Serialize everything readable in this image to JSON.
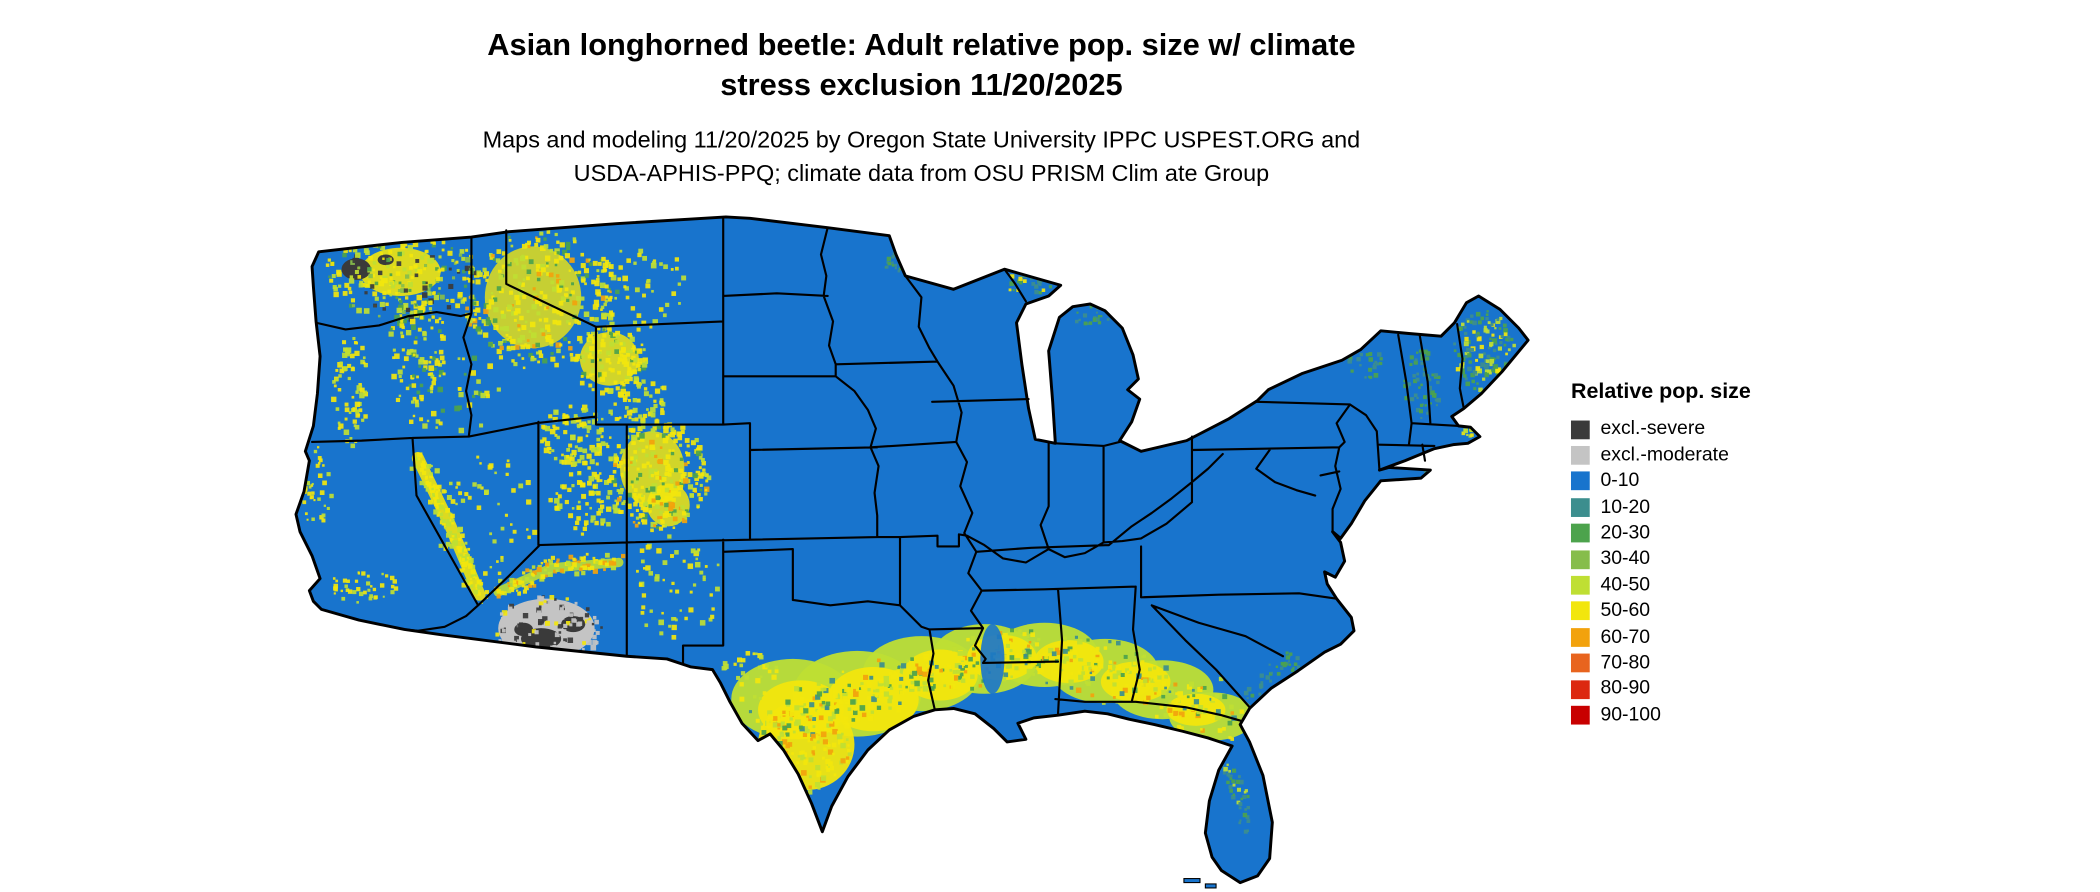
{
  "title": {
    "line1": "Asian longhorned beetle: Adult relative pop. size w/ climate",
    "line2": "stress exclusion 11/20/2025"
  },
  "subtitle": {
    "line1": "Maps and modeling 11/20/2025 by Oregon State University IPPC USPEST.ORG and",
    "line2": "USDA-APHIS-PPQ; climate data from OSU PRISM Clim ate Group"
  },
  "legend": {
    "title": "Relative pop. size",
    "items": [
      {
        "label": "excl.-severe",
        "color": "#3A3A3A"
      },
      {
        "label": "excl.-moderate",
        "color": "#C4C4C4"
      },
      {
        "label": "0-10",
        "color": "#1874CD"
      },
      {
        "label": "10-20",
        "color": "#3C8E8E"
      },
      {
        "label": "20-30",
        "color": "#4CA34C"
      },
      {
        "label": "30-40",
        "color": "#86BD4B"
      },
      {
        "label": "40-50",
        "color": "#BFDF33"
      },
      {
        "label": "50-60",
        "color": "#F2E60D"
      },
      {
        "label": "60-70",
        "color": "#F2A20D"
      },
      {
        "label": "70-80",
        "color": "#E8641E"
      },
      {
        "label": "80-90",
        "color": "#DC2810"
      },
      {
        "label": "90-100",
        "color": "#C80000"
      }
    ]
  },
  "map": {
    "depicts": "Contiguous United States raster map with black state borders on white background",
    "base_class": "0-10",
    "border_color": "#000000",
    "background": "#FFFFFF",
    "observations": [
      "Most of the contiguous U.S. is mapped as 0-10 (blue)",
      "Yellow/yellow-green 40-60 band across southern Texas and the Gulf Coast states into southern Georgia and north Florida, with scattered 60-70 flecks in south Texas",
      "Dense yellow 40-60 speckling over the Pacific Northwest, northern Idaho / western Montana, Yellowstone area, Utah and the Colorado Rockies, and along the Sierra Nevada",
      "Gray climate-stress exclusion (excl.-moderate with excl.-severe cores) over southern/central Arizona",
      "Dark excl.-severe patch on the Olympic Peninsula in Washington",
      "Green/teal 10-30 speckling over Maine, northern New England and near the upper Great Lakes"
    ]
  }
}
